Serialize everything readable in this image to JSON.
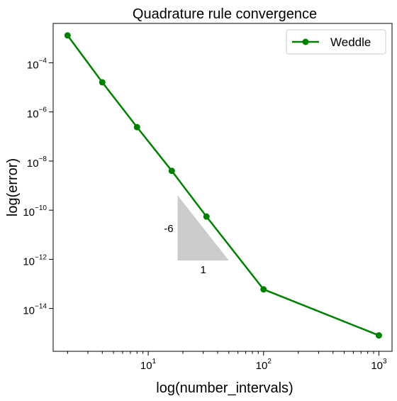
{
  "chart_data": {
    "type": "line",
    "title": "Quadrature rule convergence",
    "xlabel": "log(number_intervals)",
    "ylabel": "log(error)",
    "xscale": "log",
    "yscale": "log",
    "xlim": [
      1.5,
      1300
    ],
    "ylim": [
      1.8e-16,
      0.004
    ],
    "grid": false,
    "legend_position": "top-right",
    "x_ticks": [
      {
        "base": "10",
        "exp": "1",
        "value": 10
      },
      {
        "base": "10",
        "exp": "2",
        "value": 100
      },
      {
        "base": "10",
        "exp": "3",
        "value": 1000
      }
    ],
    "y_ticks": [
      {
        "base": "10",
        "exp": "−14",
        "value": 1e-14
      },
      {
        "base": "10",
        "exp": "−12",
        "value": 1e-12
      },
      {
        "base": "10",
        "exp": "−10",
        "value": 1e-10
      },
      {
        "base": "10",
        "exp": "−8",
        "value": 1e-08
      },
      {
        "base": "10",
        "exp": "−6",
        "value": 1e-06
      },
      {
        "base": "10",
        "exp": "−4",
        "value": 0.0001
      }
    ],
    "series": [
      {
        "name": "Weddle",
        "color": "#008000",
        "x": [
          2,
          4,
          8,
          16,
          32,
          100,
          1000
        ],
        "y": [
          0.0013,
          1.6e-05,
          2.4e-07,
          4e-09,
          5.5e-11,
          6e-14,
          8e-16
        ]
      }
    ],
    "slope_triangle": {
      "color": "#cccccc",
      "x_start": 18,
      "x_end": 50,
      "y_bottom": 9e-13,
      "y_top": 4e-10,
      "rise_label": "-6",
      "run_label": "1"
    }
  }
}
